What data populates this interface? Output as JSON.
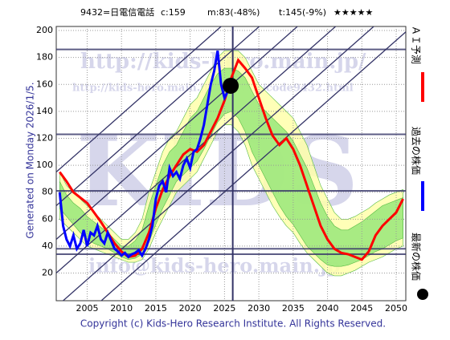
{
  "chart_data": {
    "type": "line",
    "header": {
      "code_name": "9432=日電信電話",
      "current": "c:159",
      "model": "m:83(-48%)",
      "target": "t:145(-9%)",
      "rating": "★★★★★"
    },
    "generated": "Generated on Monday 2026/1/5.",
    "copyright": "Copyright (c) Kids-Hero Research Institute. All Rights Reserved.",
    "watermarks": [
      "http://kids-hero.main.jp/",
      "http://kids-hero.main.jp/analysis/code9432.html",
      "KIDS",
      "info@kids-hero.main.jp"
    ],
    "xlim": [
      2000.5,
      2051.4
    ],
    "ylim": [
      -0.5,
      203
    ],
    "xticks": [
      2005,
      2010,
      2015,
      2020,
      2025,
      2030,
      2035,
      2040,
      2045,
      2050
    ],
    "yticks": [
      20,
      40,
      60,
      80,
      100,
      120,
      140,
      160,
      180,
      200
    ],
    "grid": true,
    "x": [
      2001,
      2002,
      2003,
      2004,
      2005,
      2006,
      2007,
      2008,
      2009,
      2010,
      2011,
      2012,
      2013,
      2014,
      2015,
      2016,
      2017,
      2018,
      2019,
      2020,
      2021,
      2022,
      2023,
      2024,
      2025,
      2026,
      2027,
      2028,
      2029,
      2030,
      2031,
      2032,
      2033,
      2034,
      2035,
      2036,
      2037,
      2038,
      2039,
      2040,
      2041,
      2042,
      2043,
      2044,
      2045,
      2046,
      2047,
      2048,
      2049,
      2050,
      2051
    ],
    "bands": [
      {
        "color": "#ffffaa",
        "upper": [
          95,
          85,
          80,
          75,
          70,
          65,
          60,
          55,
          50,
          45,
          45,
          50,
          60,
          80,
          95,
          110,
          120,
          125,
          135,
          145,
          150,
          160,
          170,
          180,
          185,
          185,
          185,
          180,
          170,
          160,
          155,
          150,
          145,
          140,
          135,
          125,
          115,
          100,
          85,
          75,
          65,
          60,
          60,
          62,
          65,
          68,
          72,
          75,
          78,
          80,
          82
        ],
        "lower": [
          60,
          55,
          50,
          45,
          40,
          38,
          36,
          34,
          32,
          30,
          28,
          28,
          30,
          38,
          50,
          60,
          70,
          80,
          85,
          90,
          95,
          105,
          115,
          125,
          130,
          130,
          125,
          115,
          100,
          90,
          80,
          70,
          62,
          55,
          50,
          42,
          35,
          30,
          25,
          20,
          18,
          18,
          20,
          22,
          25,
          28,
          30,
          32,
          35,
          38,
          40
        ]
      },
      {
        "color": "#99e87a",
        "upper": [
          88,
          78,
          72,
          68,
          62,
          58,
          54,
          50,
          45,
          40,
          40,
          44,
          52,
          70,
          85,
          100,
          110,
          115,
          125,
          135,
          140,
          150,
          160,
          168,
          172,
          172,
          170,
          165,
          155,
          145,
          140,
          135,
          130,
          125,
          118,
          108,
          98,
          85,
          72,
          62,
          55,
          52,
          52,
          55,
          58,
          62,
          66,
          70,
          72,
          74,
          76
        ],
        "lower": [
          68,
          62,
          56,
          50,
          45,
          42,
          40,
          38,
          35,
          32,
          30,
          31,
          34,
          43,
          56,
          68,
          78,
          88,
          93,
          98,
          103,
          112,
          122,
          132,
          138,
          140,
          135,
          125,
          110,
          100,
          90,
          80,
          70,
          62,
          56,
          48,
          40,
          35,
          30,
          26,
          25,
          25,
          26,
          28,
          30,
          33,
          36,
          38,
          41,
          44,
          46
        ]
      }
    ],
    "hlines": [
      186,
      123,
      81,
      38,
      34
    ],
    "vline": 2026.2,
    "diagonal_lines": [
      {
        "x": [
          2000.5,
          2051.4
        ],
        "values": [
          -30,
          199
        ]
      },
      {
        "x": [
          2000.5,
          2051.4
        ],
        "values": [
          -5,
          224
        ]
      },
      {
        "x": [
          2000.5,
          2051.4
        ],
        "values": [
          20,
          249
        ]
      },
      {
        "x": [
          2000.5,
          2051.4
        ],
        "values": [
          45,
          274
        ]
      },
      {
        "x": [
          2000.5,
          2051.4
        ],
        "values": [
          70,
          299
        ]
      },
      {
        "x": [
          2000.5,
          2051.4
        ],
        "values": [
          95,
          324
        ]
      }
    ],
    "series": [
      {
        "name": "ＡＩ予測",
        "color": "#ff0000",
        "values": [
          95,
          88,
          80,
          76,
          72,
          65,
          58,
          50,
          42,
          36,
          32,
          33,
          38,
          50,
          68,
          82,
          92,
          100,
          108,
          112,
          110,
          115,
          125,
          135,
          148,
          165,
          178,
          172,
          165,
          150,
          135,
          122,
          115,
          120,
          112,
          100,
          85,
          70,
          55,
          45,
          38,
          35,
          34,
          32,
          30,
          36,
          48,
          55,
          60,
          65,
          75
        ]
      },
      {
        "name": "過去の株価",
        "color": "#0000ff",
        "x": [
          2001,
          2001.5,
          2002,
          2002.5,
          2003,
          2003.5,
          2004,
          2004.5,
          2005,
          2005.5,
          2006,
          2006.5,
          2007,
          2007.5,
          2008,
          2008.5,
          2009,
          2009.5,
          2010,
          2010.5,
          2011,
          2011.5,
          2012,
          2012.5,
          2013,
          2013.5,
          2014,
          2014.5,
          2015,
          2015.5,
          2016,
          2016.5,
          2017,
          2017.5,
          2018,
          2018.5,
          2019,
          2019.5,
          2020,
          2020.5,
          2021,
          2021.5,
          2022,
          2022.5,
          2023,
          2023.5,
          2024,
          2024.5,
          2025,
          2025.5
        ],
        "values": [
          80,
          55,
          45,
          40,
          48,
          38,
          42,
          52,
          40,
          50,
          48,
          55,
          45,
          42,
          50,
          44,
          38,
          36,
          33,
          35,
          32,
          34,
          35,
          37,
          33,
          38,
          45,
          55,
          75,
          85,
          88,
          80,
          98,
          92,
          95,
          90,
          100,
          105,
          98,
          110,
          112,
          120,
          130,
          145,
          160,
          170,
          185,
          160,
          150,
          155
        ]
      }
    ],
    "latest": {
      "name": "最新の株価",
      "color": "#000000",
      "x": 2025.9,
      "value": 159
    }
  }
}
